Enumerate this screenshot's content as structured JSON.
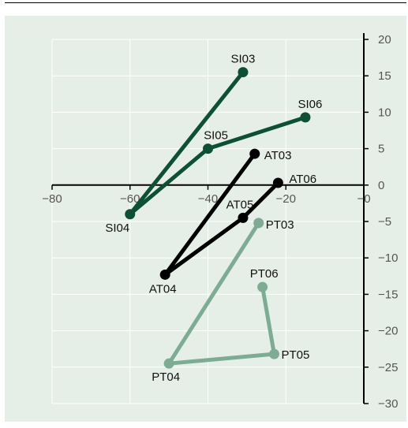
{
  "chart_data": {
    "type": "line",
    "title": "",
    "xlabel": "",
    "ylabel": "",
    "xlim": [
      -80,
      0
    ],
    "ylim": [
      -30,
      20
    ],
    "x_ticks": [
      -80,
      -60,
      -40,
      -20,
      0
    ],
    "x_tick_labels": [
      "−80",
      "−60",
      "−40",
      "−20",
      "−0"
    ],
    "y_ticks": [
      20,
      15,
      10,
      5,
      0,
      -5,
      -10,
      -15,
      -20,
      -25,
      -30
    ],
    "y_tick_labels": [
      "20",
      "15",
      "10",
      "5",
      "0",
      "−5",
      "−10",
      "−15",
      "−20",
      "−25",
      "−30"
    ],
    "grid": true,
    "series": [
      {
        "color": "#0e5035",
        "points": [
          {
            "label": "SI03",
            "x": -31,
            "y": 15.5
          },
          {
            "label": "SI04",
            "x": -60,
            "y": -4
          },
          {
            "label": "SI05",
            "x": -40,
            "y": 5
          },
          {
            "label": "SI06",
            "x": -15,
            "y": 9.3
          }
        ]
      },
      {
        "color": "#000000",
        "points": [
          {
            "label": "AT03",
            "x": -28,
            "y": 4.3
          },
          {
            "label": "AT04",
            "x": -51,
            "y": -12.3
          },
          {
            "label": "AT05",
            "x": -31,
            "y": -4.5
          },
          {
            "label": "AT06",
            "x": -22,
            "y": 0.3
          }
        ]
      },
      {
        "color": "#7eab94",
        "points": [
          {
            "label": "PT03",
            "x": -27,
            "y": -5.2
          },
          {
            "label": "PT04",
            "x": -50,
            "y": -24.5
          },
          {
            "label": "PT05",
            "x": -23,
            "y": -23.2
          },
          {
            "label": "PT06",
            "x": -26,
            "y": -14
          }
        ]
      }
    ]
  }
}
